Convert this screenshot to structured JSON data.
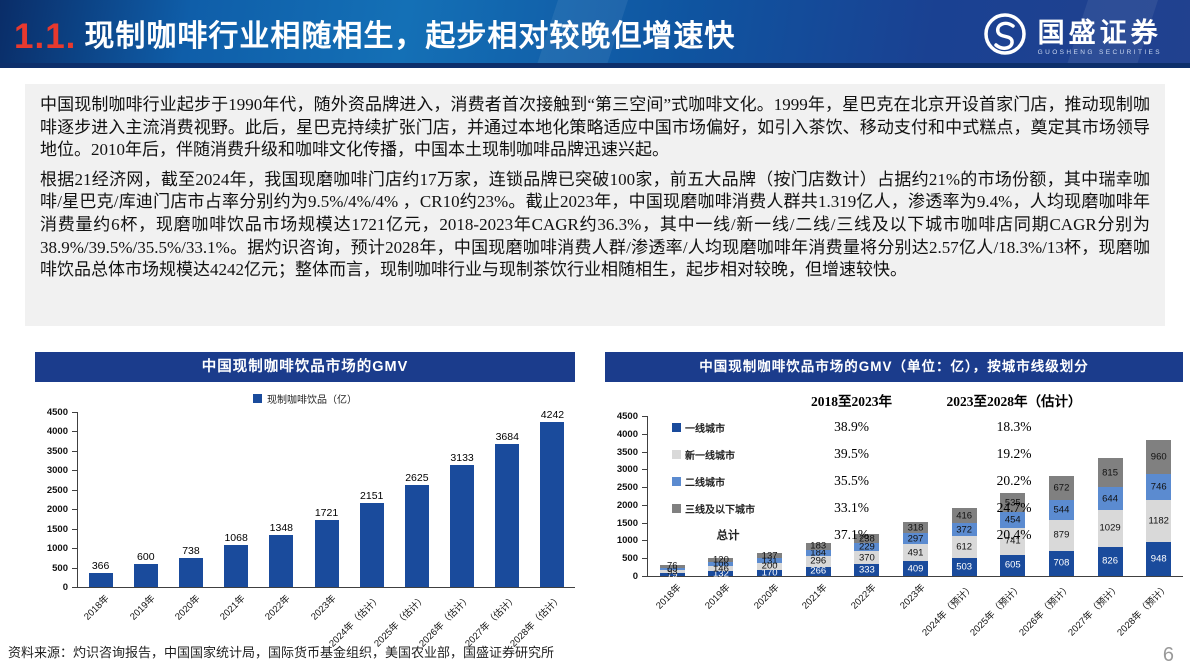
{
  "header": {
    "section_number": "1.1.",
    "title": "现制咖啡行业相随相生，起步相对较晚但增速快",
    "logo_text": "国盛证券",
    "logo_subtext": "GUOSHENG SECURITIES"
  },
  "body": {
    "paragraph1": "中国现制咖啡行业起步于1990年代，随外资品牌进入，消费者首次接触到“第三空间”式咖啡文化。1999年，星巴克在北京开设首家门店，推动现制咖啡逐步进入主流消费视野。此后，星巴克持续扩张门店，并通过本地化策略适应中国市场偏好，如引入茶饮、移动支付和中式糕点，奠定其市场领导地位。2010年后，伴随消费升级和咖啡文化传播，中国本土现制咖啡品牌迅速兴起。",
    "paragraph2": "根据21经济网，截至2024年，我国现磨咖啡门店约17万家，连锁品牌已突破100家，前五大品牌（按门店数计）占据约21%的市场份额，其中瑞幸咖啡/星巴克/库迪门店市占率分别约为9.5%/4%/4% ，CR10约23%。截止2023年，中国现磨咖啡消费人群共1.319亿人，渗透率为9.4%，人均现磨咖啡年消费量约6杯，现磨咖啡饮品市场规模达1721亿元，2018-2023年CAGR约36.3%，其中一线/新一线/二线/三线及以下城市咖啡店同期CAGR分别为38.9%/39.5%/35.5%/33.1%。据灼识咨询，预计2028年，中国现磨咖啡消费人群/渗透率/人均现磨咖啡年消费量将分别达2.57亿人/18.3%/13杯，现磨咖啡饮品总体市场规模达4242亿元；整体而言，现制咖啡行业与现制茶饮行业相随相生，起步相对较晚，但增速较快。"
  },
  "footer": {
    "source": "资料来源：灼识咨询报告，中国国家统计局，国际货币基金组织，美国农业部，国盛证券研究所",
    "page_number": "6"
  },
  "colors": {
    "header_gradient_start": "#0a2d68",
    "header_gradient_mid": "#1470b6",
    "header_gradient_end": "#21418f",
    "section_number_red": "#e8392e",
    "chart_title_bg": "#1b3c8c",
    "bar_blue": "#1a4b9c",
    "new_tier1_gray": "#d9d9d9",
    "tier2_blue": "#5b8bd0",
    "tier3_gray": "#808080",
    "panel_bg": "#f1f1f1"
  },
  "chart_data": [
    {
      "type": "bar",
      "title": "中国现制咖啡饮品市场的GMV",
      "legend_label": "现制咖啡饮品（亿）",
      "categories": [
        "2018年",
        "2019年",
        "2020年",
        "2021年",
        "2022年",
        "2023年",
        "2024年（估计）",
        "2025年（估计）",
        "2026年（估计）",
        "2027年（估计）",
        "2028年（估计）"
      ],
      "values": [
        366,
        600,
        738,
        1068,
        1348,
        1721,
        2151,
        2625,
        3133,
        3684,
        4242
      ],
      "ylim": [
        0,
        4500
      ],
      "ystep": 500,
      "bar_color": "#1a4b9c",
      "grid": false,
      "legend_position": "top"
    },
    {
      "type": "bar",
      "stacked": true,
      "title": "中国现制咖啡饮品市场的GMV（单位：亿），按城市线级划分",
      "categories": [
        "2018年",
        "2019年",
        "2020年",
        "2021年",
        "2022年",
        "2023年",
        "2024年（预计）",
        "2025年（预计）",
        "2026年（预计）",
        "2027年（预计）",
        "2028年（预计）"
      ],
      "series": [
        {
          "name": "一线城市",
          "color": "#1a4b9c",
          "values": [
            79,
            132,
            170,
            266,
            333,
            409,
            503,
            605,
            708,
            826,
            948
          ]
        },
        {
          "name": "新一线城市",
          "color": "#d9d9d9",
          "values": [
            93,
            146,
            200,
            296,
            370,
            491,
            612,
            741,
            879,
            1029,
            1182
          ]
        },
        {
          "name": "二线城市",
          "color": "#5b8bd0",
          "values": [
            65,
            106,
            131,
            184,
            229,
            297,
            372,
            454,
            544,
            644,
            746
          ]
        },
        {
          "name": "三线及以下城市",
          "color": "#808080",
          "values": [
            76,
            120,
            137,
            183,
            238,
            318,
            416,
            535,
            672,
            815,
            960
          ]
        }
      ],
      "cagr_columns": [
        "2018至2023年",
        "2023至2028年（估计）"
      ],
      "cagr_rows": [
        {
          "name": "一线城市",
          "color": "#1a4b9c",
          "col1": "38.9%",
          "col2": "18.3%"
        },
        {
          "name": "新一线城市",
          "color": "#d9d9d9",
          "col1": "39.5%",
          "col2": "19.2%"
        },
        {
          "name": "二线城市",
          "color": "#5b8bd0",
          "col1": "35.5%",
          "col2": "20.2%"
        },
        {
          "name": "三线及以下城市",
          "color": "#808080",
          "col1": "33.1%",
          "col2": "24.7%"
        },
        {
          "name": "总计",
          "color": null,
          "col1": "37.1%",
          "col2": "20.4%"
        }
      ],
      "ylim": [
        0,
        4500
      ],
      "ystep": 500,
      "grid": false
    }
  ]
}
